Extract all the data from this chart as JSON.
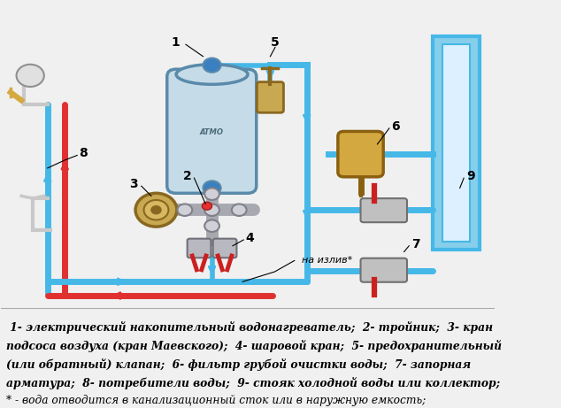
{
  "background_color": "#f0f0f0",
  "text_lines": [
    " 1- электрический накопительный водонагреватель;  2- тройник;  3- кран",
    "подсоса воздуха (кран Маевского);  4- шаровой кран;  5- предохранительный",
    "(или обратный) клапан;  6- фильтр грубой очистки воды;  7- запорная",
    "арматура;  8- потребители воды;  9- стояк холодной воды или коллектор;",
    "* - вода отводится в канализационный сток или в наружную емкость;"
  ],
  "cold_water_color": "#45b8e8",
  "hot_water_color": "#e03030",
  "boiler_color": "#c5dce8",
  "boiler_outline": "#5a8aaa",
  "na_izliv_text": "на излив*",
  "label1": "1",
  "label2": "2",
  "label3": "3",
  "label4": "4",
  "label5": "5",
  "label6": "6",
  "label7": "7",
  "label8": "8",
  "label9": "9"
}
